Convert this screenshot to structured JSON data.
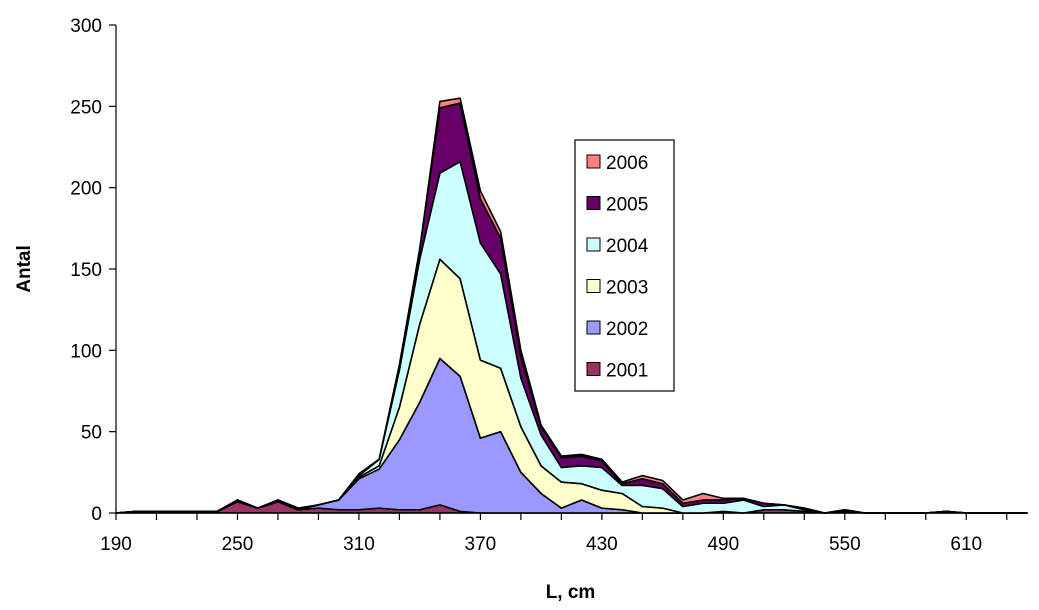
{
  "chart_data": {
    "type": "area",
    "stacked": true,
    "title": "",
    "xlabel": "L, cm",
    "ylabel": "Antal",
    "xlim": [
      190,
      640
    ],
    "ylim": [
      0,
      300
    ],
    "x_ticks": [
      "190",
      "250",
      "310",
      "370",
      "430",
      "490",
      "550",
      "610"
    ],
    "y_ticks": [
      "0",
      "50",
      "100",
      "150",
      "200",
      "250",
      "300"
    ],
    "grid": false,
    "legend_position": "right of peak, upper middle",
    "x": [
      190,
      200,
      210,
      220,
      230,
      240,
      250,
      260,
      270,
      280,
      290,
      300,
      310,
      320,
      330,
      340,
      350,
      360,
      370,
      380,
      390,
      400,
      410,
      420,
      430,
      440,
      450,
      460,
      470,
      480,
      490,
      500,
      510,
      520,
      530,
      540,
      550,
      560,
      570,
      580,
      590,
      600,
      610,
      620,
      630,
      640
    ],
    "series": [
      {
        "name": "2001",
        "color": "#993366",
        "values": [
          0,
          1,
          1,
          1,
          1,
          1,
          7,
          3,
          7,
          2,
          3,
          2,
          2,
          3,
          2,
          2,
          5,
          1,
          0,
          0,
          0,
          0,
          0,
          0,
          0,
          0,
          0,
          0,
          0,
          0,
          1,
          0,
          2,
          2,
          1,
          0,
          1,
          0,
          0,
          0,
          0,
          1,
          0,
          0,
          0,
          0
        ]
      },
      {
        "name": "2002",
        "color": "#9999ff",
        "values": [
          0,
          0,
          0,
          0,
          0,
          0,
          0,
          0,
          0,
          0,
          2,
          6,
          19,
          24,
          43,
          66,
          90,
          83,
          46,
          50,
          25,
          12,
          3,
          8,
          3,
          2,
          0,
          0,
          0,
          0,
          0,
          0,
          0,
          0,
          0,
          0,
          0,
          0,
          0,
          0,
          0,
          0,
          0,
          0,
          0,
          0
        ]
      },
      {
        "name": "2003",
        "color": "#ffffcc",
        "values": [
          0,
          0,
          0,
          0,
          0,
          0,
          0,
          0,
          0,
          0,
          0,
          0,
          1,
          2,
          20,
          48,
          61,
          60,
          48,
          39,
          28,
          17,
          16,
          10,
          11,
          10,
          4,
          3,
          0,
          0,
          0,
          0,
          0,
          0,
          0,
          0,
          0,
          0,
          0,
          0,
          0,
          0,
          0,
          0,
          0,
          0
        ]
      },
      {
        "name": "2004",
        "color": "#ccffff",
        "values": [
          0,
          0,
          0,
          0,
          0,
          0,
          0,
          0,
          0,
          0,
          0,
          0,
          1,
          4,
          23,
          40,
          53,
          72,
          72,
          58,
          30,
          19,
          9,
          11,
          14,
          5,
          13,
          12,
          4,
          6,
          5,
          8,
          2,
          3,
          1,
          0,
          0,
          0,
          0,
          0,
          0,
          0,
          0,
          0,
          0,
          0
        ]
      },
      {
        "name": "2005",
        "color": "#660066",
        "values": [
          0,
          0,
          0,
          0,
          0,
          0,
          1,
          0,
          1,
          1,
          0,
          0,
          1,
          0,
          3,
          6,
          40,
          36,
          27,
          22,
          13,
          5,
          6,
          6,
          4,
          1,
          4,
          3,
          2,
          2,
          2,
          1,
          2,
          0,
          1,
          0,
          1,
          0,
          0,
          0,
          0,
          0,
          0,
          0,
          0,
          0
        ]
      },
      {
        "name": "2006",
        "color": "#ff8080",
        "values": [
          0,
          0,
          0,
          0,
          0,
          0,
          0,
          0,
          0,
          0,
          0,
          0,
          0,
          0,
          0,
          0,
          4,
          3,
          5,
          4,
          4,
          1,
          1,
          1,
          1,
          1,
          2,
          2,
          2,
          4,
          1,
          0,
          0,
          0,
          0,
          0,
          0,
          0,
          0,
          0,
          0,
          0,
          0,
          0,
          0,
          0
        ]
      }
    ]
  }
}
